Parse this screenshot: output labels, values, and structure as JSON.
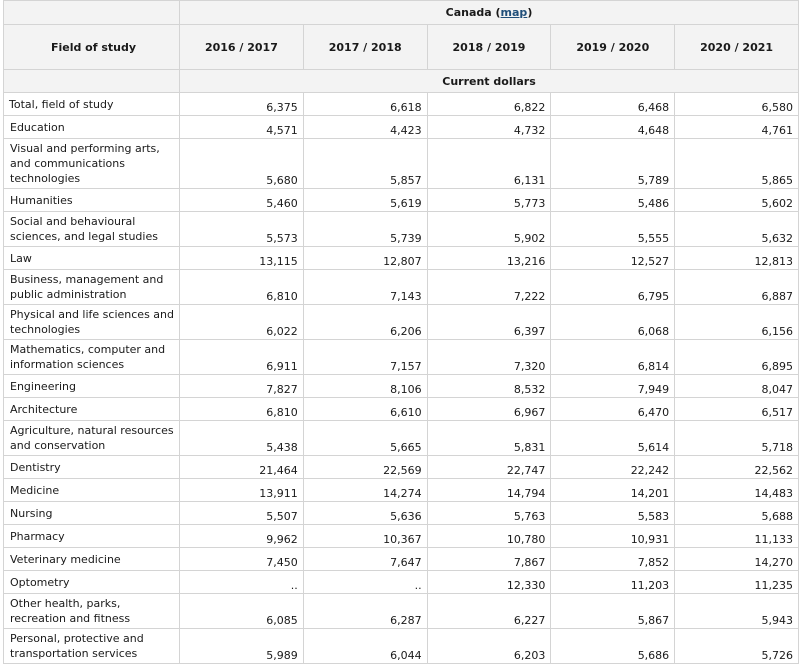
{
  "header": {
    "geo_label": "Canada",
    "map_link": "map",
    "field_header": "Field of study",
    "years": [
      "2016 / 2017",
      "2017 / 2018",
      "2018 / 2019",
      "2019 / 2020",
      "2020 / 2021"
    ],
    "units": "Current dollars"
  },
  "rows": [
    {
      "field": "Total, field of study",
      "values": [
        "6,375",
        "6,618",
        "6,822",
        "6,468",
        "6,580"
      ]
    },
    {
      "field": "Education",
      "values": [
        "4,571",
        "4,423",
        "4,732",
        "4,648",
        "4,761"
      ]
    },
    {
      "field": "Visual and performing arts, and communications technologies",
      "values": [
        "5,680",
        "5,857",
        "6,131",
        "5,789",
        "5,865"
      ]
    },
    {
      "field": "Humanities",
      "values": [
        "5,460",
        "5,619",
        "5,773",
        "5,486",
        "5,602"
      ]
    },
    {
      "field": "Social and behavioural sciences, and legal studies",
      "values": [
        "5,573",
        "5,739",
        "5,902",
        "5,555",
        "5,632"
      ]
    },
    {
      "field": "Law",
      "values": [
        "13,115",
        "12,807",
        "13,216",
        "12,527",
        "12,813"
      ]
    },
    {
      "field": "Business, management and public administration",
      "values": [
        "6,810",
        "7,143",
        "7,222",
        "6,795",
        "6,887"
      ]
    },
    {
      "field": "Physical and life sciences and technologies",
      "values": [
        "6,022",
        "6,206",
        "6,397",
        "6,068",
        "6,156"
      ]
    },
    {
      "field": "Mathematics, computer and information sciences",
      "values": [
        "6,911",
        "7,157",
        "7,320",
        "6,814",
        "6,895"
      ]
    },
    {
      "field": "Engineering",
      "values": [
        "7,827",
        "8,106",
        "8,532",
        "7,949",
        "8,047"
      ]
    },
    {
      "field": "Architecture",
      "values": [
        "6,810",
        "6,610",
        "6,967",
        "6,470",
        "6,517"
      ]
    },
    {
      "field": "Agriculture, natural resources and conservation",
      "values": [
        "5,438",
        "5,665",
        "5,831",
        "5,614",
        "5,718"
      ]
    },
    {
      "field": "Dentistry",
      "values": [
        "21,464",
        "22,569",
        "22,747",
        "22,242",
        "22,562"
      ]
    },
    {
      "field": "Medicine",
      "values": [
        "13,911",
        "14,274",
        "14,794",
        "14,201",
        "14,483"
      ]
    },
    {
      "field": "Nursing",
      "values": [
        "5,507",
        "5,636",
        "5,763",
        "5,583",
        "5,688"
      ]
    },
    {
      "field": "Pharmacy",
      "values": [
        "9,962",
        "10,367",
        "10,780",
        "10,931",
        "11,133"
      ]
    },
    {
      "field": "Veterinary medicine",
      "values": [
        "7,450",
        "7,647",
        "7,867",
        "7,852",
        "14,270"
      ]
    },
    {
      "field": "Optometry",
      "values": [
        "..",
        "..",
        "12,330",
        "11,203",
        "11,235"
      ]
    },
    {
      "field": "Other health, parks, recreation and fitness",
      "values": [
        "6,085",
        "6,287",
        "6,227",
        "5,867",
        "5,943"
      ]
    },
    {
      "field": "Personal, protective and transportation services",
      "values": [
        "5,989",
        "6,044",
        "6,203",
        "5,686",
        "5,726"
      ]
    }
  ]
}
